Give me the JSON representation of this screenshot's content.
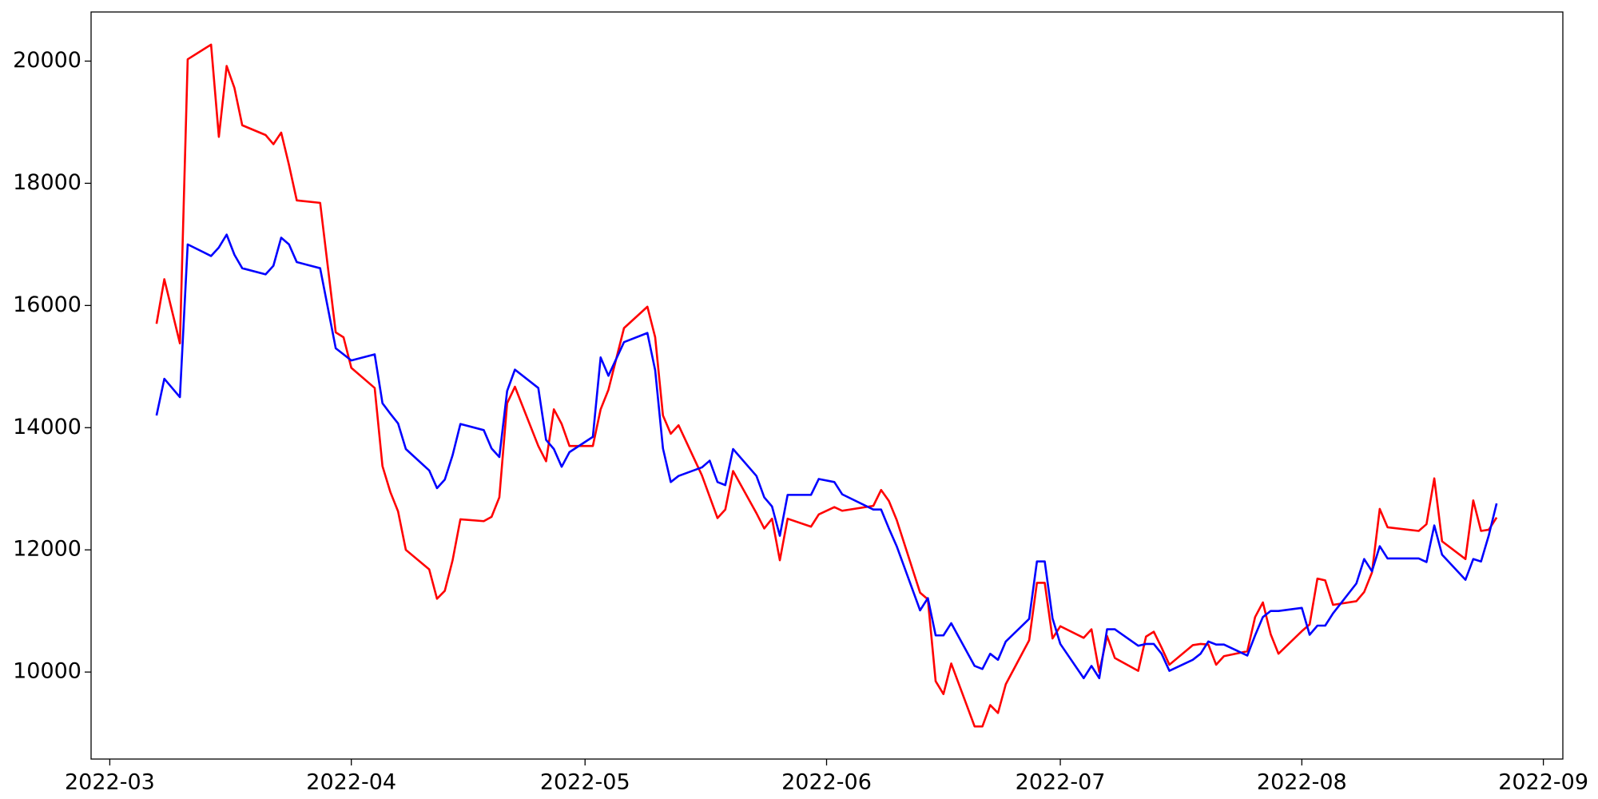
{
  "chart_data": {
    "type": "line",
    "x": [
      66,
      67,
      69,
      70,
      73,
      74,
      75,
      76,
      77,
      80,
      81,
      82,
      83,
      84,
      87,
      89,
      90,
      91,
      94,
      95,
      96,
      97,
      98,
      101,
      102,
      103,
      104,
      105,
      108,
      109,
      110,
      111,
      112,
      115,
      116,
      117,
      118,
      119,
      122,
      123,
      124,
      126,
      129,
      130,
      131,
      132,
      133,
      136,
      137,
      138,
      139,
      140,
      143,
      144,
      145,
      146,
      147,
      150,
      151,
      153,
      154,
      158,
      159,
      160,
      161,
      164,
      165,
      166,
      167,
      168,
      171,
      172,
      173,
      174,
      175,
      178,
      179,
      180,
      181,
      182,
      185,
      186,
      187,
      188,
      189,
      192,
      193,
      194,
      195,
      196,
      199,
      200,
      201,
      202,
      203,
      206,
      207,
      208,
      209,
      210,
      213,
      214,
      215,
      216,
      217,
      220,
      221,
      222,
      223,
      224,
      228,
      229,
      230,
      231,
      234,
      235,
      236,
      237,
      238
    ],
    "series": [
      {
        "color": "#ff0000",
        "values": [
          15700,
          16430,
          15380,
          20030,
          20270,
          18760,
          19920,
          19560,
          18950,
          18790,
          18640,
          18830,
          18300,
          17720,
          17680,
          15560,
          15480,
          14980,
          14650,
          13370,
          12950,
          12630,
          12000,
          11680,
          11200,
          11330,
          11830,
          12500,
          12470,
          12540,
          12860,
          14400,
          14670,
          13700,
          13450,
          14300,
          14060,
          13700,
          13700,
          14300,
          14620,
          15630,
          15980,
          15480,
          14200,
          13900,
          14040,
          13220,
          12870,
          12520,
          12660,
          13290,
          12600,
          12350,
          12510,
          11830,
          12510,
          12380,
          12580,
          12700,
          12640,
          12720,
          12980,
          12800,
          12490,
          11300,
          11190,
          9850,
          9640,
          10140,
          9110,
          9110,
          9460,
          9330,
          9800,
          10520,
          11460,
          11460,
          10550,
          10750,
          10560,
          10700,
          10000,
          10590,
          10230,
          10020,
          10580,
          10660,
          10400,
          10120,
          10440,
          10460,
          10450,
          10120,
          10260,
          10340,
          10900,
          11140,
          10620,
          10300,
          10670,
          10780,
          11530,
          11500,
          11100,
          11160,
          11310,
          11630,
          12670,
          12370,
          12310,
          12420,
          13170,
          12140,
          11850,
          12810,
          12310,
          12330,
          12530
        ]
      },
      {
        "color": "#0000ff",
        "values": [
          14200,
          14800,
          14500,
          17000,
          16810,
          16950,
          17160,
          16830,
          16610,
          16510,
          16650,
          17110,
          17000,
          16710,
          16610,
          15300,
          15200,
          15100,
          15200,
          14400,
          14230,
          14070,
          13650,
          13300,
          13010,
          13150,
          13550,
          14060,
          13960,
          13660,
          13520,
          14600,
          14950,
          14650,
          13800,
          13650,
          13360,
          13600,
          13850,
          15150,
          14850,
          15400,
          15550,
          14940,
          13660,
          13110,
          13210,
          13350,
          13460,
          13110,
          13060,
          13650,
          13210,
          12860,
          12710,
          12230,
          12900,
          12900,
          13160,
          13110,
          12910,
          12660,
          12660,
          12350,
          12060,
          11010,
          11210,
          10600,
          10600,
          10800,
          10100,
          10050,
          10300,
          10200,
          10500,
          10870,
          11810,
          11810,
          10880,
          10460,
          9900,
          10100,
          9900,
          10700,
          10700,
          10430,
          10460,
          10460,
          10300,
          10020,
          10200,
          10300,
          10500,
          10450,
          10450,
          10270,
          10600,
          10900,
          11000,
          11000,
          11050,
          10610,
          10760,
          10760,
          10960,
          11450,
          11850,
          11650,
          12060,
          11860,
          11860,
          11800,
          12400,
          11920,
          11510,
          11850,
          11810,
          12240,
          12760
        ]
      }
    ],
    "xlim": [
      57.6,
      246.5
    ],
    "xticks": [
      {
        "value": 60,
        "label": "2022-03"
      },
      {
        "value": 91,
        "label": "2022-04"
      },
      {
        "value": 121,
        "label": "2022-05"
      },
      {
        "value": 152,
        "label": "2022-06"
      },
      {
        "value": 182,
        "label": "2022-07"
      },
      {
        "value": 213,
        "label": "2022-08"
      },
      {
        "value": 244,
        "label": "2022-09"
      }
    ],
    "ylim": [
      8576,
      20804
    ],
    "yticks": [
      10000,
      12000,
      14000,
      16000,
      18000,
      20000
    ],
    "grid": false
  }
}
